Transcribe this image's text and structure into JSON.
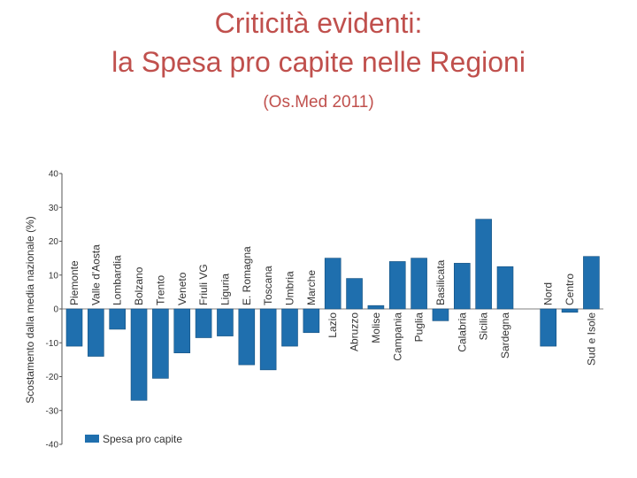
{
  "slide": {
    "title_line1": "Criticità evidenti:",
    "title_line2": "la Spesa pro capite nelle Regioni",
    "subtitle": "(Os.Med 2011)"
  },
  "colors": {
    "bar": "#1f6fae",
    "title": "#c0504d",
    "axis": "#555555"
  },
  "chart_data": {
    "type": "bar",
    "categories": [
      "Piemonte",
      "Valle d'Aosta",
      "Lombardia",
      "Bolzano",
      "Trento",
      "Veneto",
      "Friuli VG",
      "Liguria",
      "E. Romagna",
      "Toscana",
      "Umbria",
      "Marche",
      "Lazio",
      "Abruzzo",
      "Molise",
      "Campania",
      "Puglia",
      "Basilicata",
      "Calabria",
      "Sicilia",
      "Sardegna",
      "",
      "Nord",
      "Centro",
      "Sud e Isole"
    ],
    "values": [
      -11,
      -14,
      -6,
      -27,
      -20.5,
      -13,
      -8.5,
      -8,
      -16.5,
      -18,
      -11,
      -7,
      15,
      9,
      1,
      14,
      15,
      -3.5,
      13.5,
      26.5,
      12.5,
      null,
      -11,
      -1,
      15.5
    ],
    "ylabel": "Scostamento dalla media nazionale (%)",
    "ylim": [
      -40,
      40
    ],
    "yticks": [
      "40",
      "30",
      "20",
      "10",
      "0",
      "-10",
      "-20",
      "-30",
      "-40"
    ],
    "legend": {
      "label": "Spesa pro capite",
      "position": "bottom-left"
    },
    "grid": false
  }
}
